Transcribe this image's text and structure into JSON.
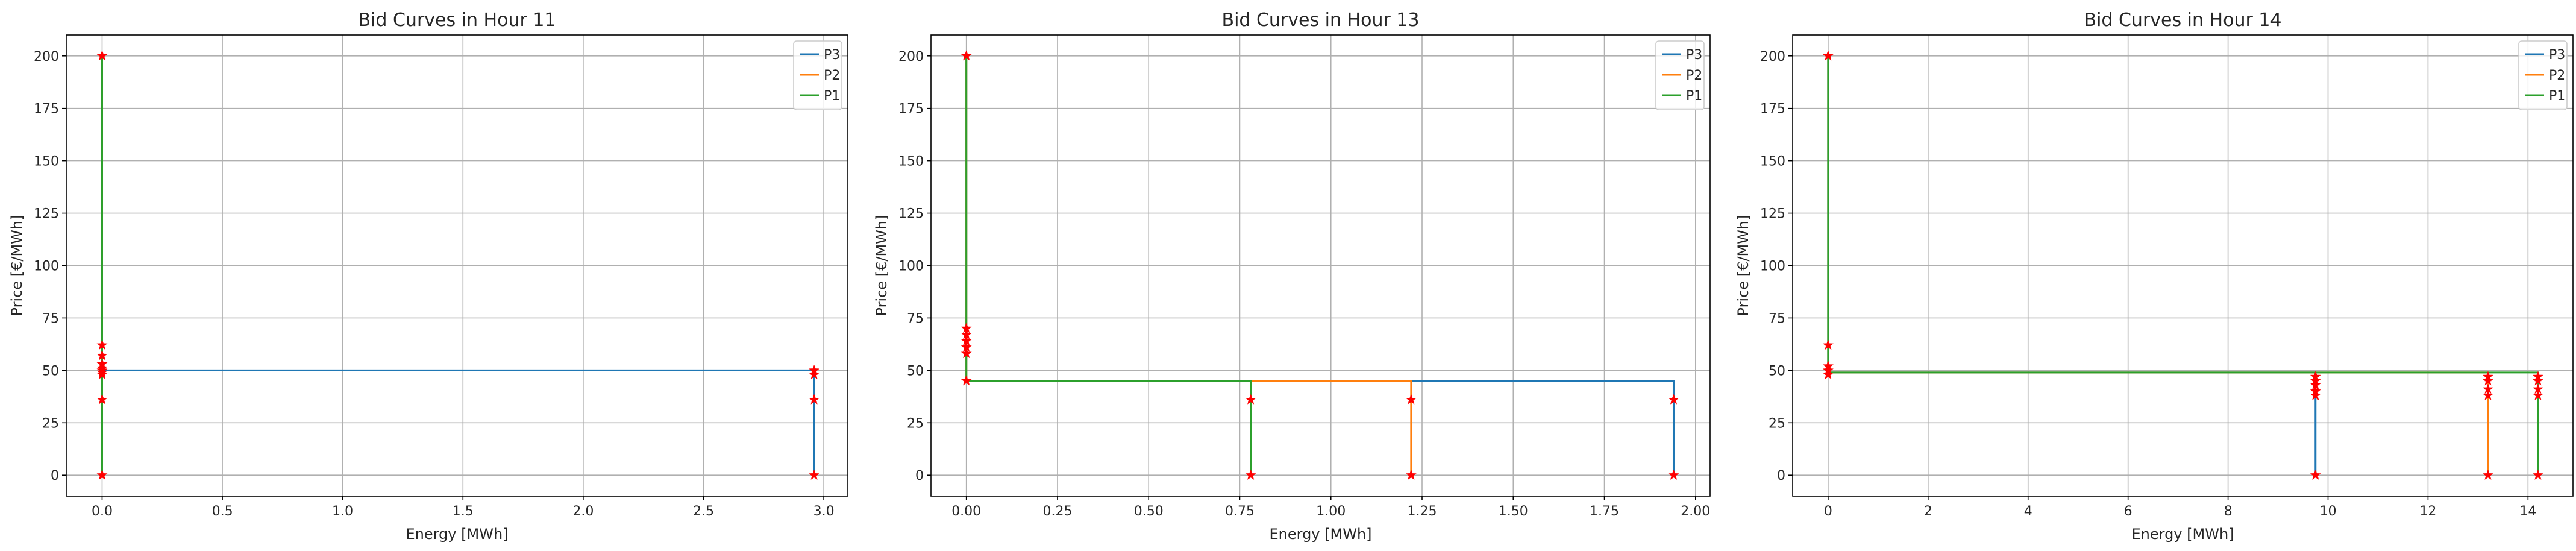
{
  "chart_data": [
    {
      "type": "line",
      "title": "Bid Curves in Hour 11",
      "xlabel": "Energy [MWh]",
      "ylabel": "Price [€/MWh]",
      "xlim": [
        -0.149,
        3.1
      ],
      "ylim": [
        -10,
        210
      ],
      "xticks": [
        0.0,
        0.5,
        1.0,
        1.5,
        2.0,
        2.5,
        3.0
      ],
      "xtick_labels": [
        "0.0",
        "0.5",
        "1.0",
        "1.5",
        "2.0",
        "2.5",
        "3.0"
      ],
      "yticks": [
        0,
        25,
        50,
        75,
        100,
        125,
        150,
        175,
        200
      ],
      "ytick_labels": [
        "0",
        "25",
        "50",
        "75",
        "100",
        "125",
        "150",
        "175",
        "200"
      ],
      "grid": true,
      "legend_position": "top-right",
      "series": [
        {
          "name": "P3",
          "color": "#1f77b4",
          "x": [
            0,
            0,
            2.96,
            2.96
          ],
          "y": [
            200,
            50,
            50,
            0
          ]
        },
        {
          "name": "P2",
          "color": "#ff7f0e",
          "x": [
            0,
            0,
            0,
            0
          ],
          "y": [
            200,
            50,
            50,
            0
          ]
        },
        {
          "name": "P1",
          "color": "#2ca02c",
          "x": [
            0,
            0,
            0,
            0
          ],
          "y": [
            200,
            50,
            50,
            0
          ]
        }
      ],
      "markers": {
        "color": "#ff0000",
        "points": [
          [
            0,
            200
          ],
          [
            0,
            62
          ],
          [
            0,
            57
          ],
          [
            0,
            53
          ],
          [
            0,
            51
          ],
          [
            0,
            50
          ],
          [
            0,
            49
          ],
          [
            0,
            48
          ],
          [
            0,
            36
          ],
          [
            0,
            0
          ],
          [
            2.96,
            50
          ],
          [
            2.96,
            48
          ],
          [
            2.96,
            36
          ],
          [
            2.96,
            0
          ]
        ]
      }
    },
    {
      "type": "line",
      "title": "Bid Curves in Hour 13",
      "xlabel": "Energy [MWh]",
      "ylabel": "Price [€/MWh]",
      "xlim": [
        -0.097,
        2.04
      ],
      "ylim": [
        -10,
        210
      ],
      "xticks": [
        0.0,
        0.25,
        0.5,
        0.75,
        1.0,
        1.25,
        1.5,
        1.75,
        2.0
      ],
      "xtick_labels": [
        "0.00",
        "0.25",
        "0.50",
        "0.75",
        "1.00",
        "1.25",
        "1.50",
        "1.75",
        "2.00"
      ],
      "yticks": [
        0,
        25,
        50,
        75,
        100,
        125,
        150,
        175,
        200
      ],
      "ytick_labels": [
        "0",
        "25",
        "50",
        "75",
        "100",
        "125",
        "150",
        "175",
        "200"
      ],
      "grid": true,
      "legend_position": "top-right",
      "series": [
        {
          "name": "P3",
          "color": "#1f77b4",
          "x": [
            0,
            0,
            1.94,
            1.94
          ],
          "y": [
            200,
            45,
            45,
            0
          ]
        },
        {
          "name": "P2",
          "color": "#ff7f0e",
          "x": [
            0,
            0,
            1.22,
            1.22
          ],
          "y": [
            200,
            45,
            45,
            0
          ]
        },
        {
          "name": "P1",
          "color": "#2ca02c",
          "x": [
            0,
            0,
            0.78,
            0.78
          ],
          "y": [
            200,
            45,
            45,
            0
          ]
        }
      ],
      "markers": {
        "color": "#ff0000",
        "points": [
          [
            0,
            200
          ],
          [
            0,
            70
          ],
          [
            0,
            67
          ],
          [
            0,
            64
          ],
          [
            0,
            61
          ],
          [
            0,
            58
          ],
          [
            0,
            45
          ],
          [
            0.78,
            36
          ],
          [
            0.78,
            0
          ],
          [
            1.22,
            36
          ],
          [
            1.22,
            0
          ],
          [
            1.94,
            36
          ],
          [
            1.94,
            0
          ]
        ]
      }
    },
    {
      "type": "line",
      "title": "Bid Curves in Hour 14",
      "xlabel": "Energy [MWh]",
      "ylabel": "Price [€/MWh]",
      "xlim": [
        -0.71,
        14.9
      ],
      "ylim": [
        -10,
        210
      ],
      "xticks": [
        0,
        2,
        4,
        6,
        8,
        10,
        12,
        14
      ],
      "xtick_labels": [
        "0",
        "2",
        "4",
        "6",
        "8",
        "10",
        "12",
        "14"
      ],
      "yticks": [
        0,
        25,
        50,
        75,
        100,
        125,
        150,
        175,
        200
      ],
      "ytick_labels": [
        "0",
        "25",
        "50",
        "75",
        "100",
        "125",
        "150",
        "175",
        "200"
      ],
      "grid": true,
      "legend_position": "top-right",
      "series": [
        {
          "name": "P3",
          "color": "#1f77b4",
          "x": [
            0,
            0,
            9.75,
            9.75
          ],
          "y": [
            200,
            49,
            49,
            0
          ]
        },
        {
          "name": "P2",
          "color": "#ff7f0e",
          "x": [
            0,
            0,
            13.2,
            13.2
          ],
          "y": [
            200,
            49,
            49,
            0
          ]
        },
        {
          "name": "P1",
          "color": "#2ca02c",
          "x": [
            0,
            0,
            14.2,
            14.2
          ],
          "y": [
            200,
            49,
            49,
            0
          ]
        }
      ],
      "markers": {
        "color": "#ff0000",
        "points": [
          [
            0,
            200
          ],
          [
            0,
            62
          ],
          [
            0,
            52
          ],
          [
            0,
            50
          ],
          [
            0,
            48
          ],
          [
            9.75,
            47
          ],
          [
            9.75,
            45
          ],
          [
            9.75,
            43
          ],
          [
            9.75,
            40
          ],
          [
            9.75,
            38
          ],
          [
            9.75,
            0
          ],
          [
            13.2,
            47
          ],
          [
            13.2,
            45
          ],
          [
            13.2,
            41
          ],
          [
            13.2,
            38
          ],
          [
            13.2,
            0
          ],
          [
            14.2,
            47
          ],
          [
            14.2,
            45
          ],
          [
            14.2,
            41
          ],
          [
            14.2,
            38
          ],
          [
            14.2,
            0
          ]
        ]
      }
    }
  ]
}
